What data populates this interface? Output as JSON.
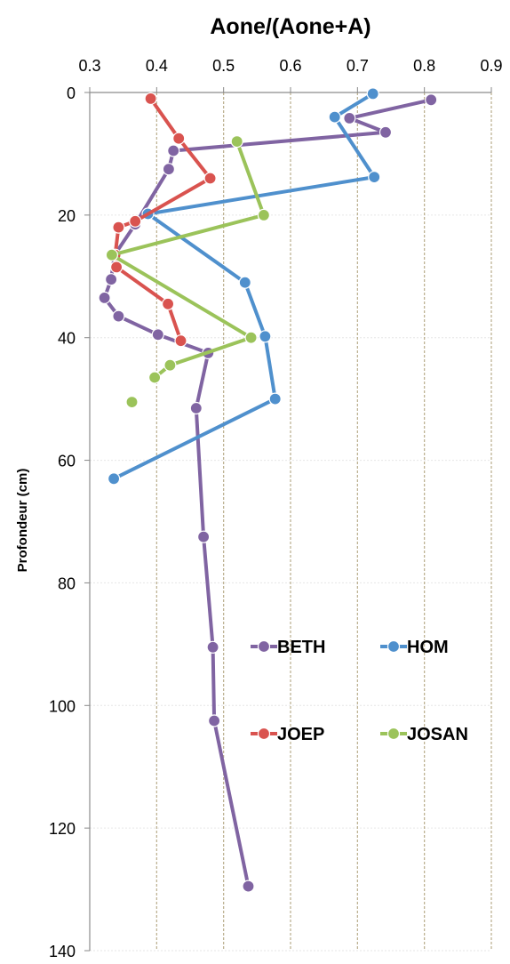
{
  "chart_data": {
    "type": "line",
    "title": "Aone/(Aone+A)",
    "xlabel": "Aone/(Aone+A)",
    "ylabel": "Profondeur (cm)",
    "xlim": [
      0.3,
      0.9
    ],
    "ylim": [
      0,
      140
    ],
    "y_inverted": true,
    "x_axis_position": "top",
    "xticks": [
      "0.3",
      "0.4",
      "0.5",
      "0.6",
      "0.7",
      "0.8",
      "0.9"
    ],
    "yticks": [
      "0",
      "20",
      "40",
      "60",
      "80",
      "100",
      "120",
      "140"
    ],
    "grid": {
      "vertical": true,
      "vertical_color": "#b9ad8c",
      "horizontal": true,
      "horizontal_color": "#e6e6e6"
    },
    "legend": {
      "position": "lower-right",
      "columns": 2
    },
    "series": [
      {
        "name": "BETH",
        "color": "#8064a2",
        "points": [
          {
            "x": 0.81,
            "y": 1.2
          },
          {
            "x": 0.688,
            "y": 4.2
          },
          {
            "x": 0.742,
            "y": 6.5
          },
          {
            "x": 0.425,
            "y": 9.5
          },
          {
            "x": 0.418,
            "y": 12.5
          },
          {
            "x": 0.368,
            "y": 21.5
          },
          {
            "x": 0.337,
            "y": 26.5
          },
          {
            "x": 0.332,
            "y": 30.5
          },
          {
            "x": 0.322,
            "y": 33.5
          },
          {
            "x": 0.343,
            "y": 36.5
          },
          {
            "x": 0.402,
            "y": 39.5
          },
          {
            "x": 0.477,
            "y": 42.5
          },
          {
            "x": 0.459,
            "y": 51.5
          },
          {
            "x": 0.47,
            "y": 72.5
          },
          {
            "x": 0.484,
            "y": 90.5
          },
          {
            "x": 0.486,
            "y": 102.5
          },
          {
            "x": 0.537,
            "y": 129.5
          }
        ]
      },
      {
        "name": "HOM",
        "color": "#4f90cd",
        "points": [
          {
            "x": 0.723,
            "y": 0.2
          },
          {
            "x": 0.666,
            "y": 4.0
          },
          {
            "x": 0.725,
            "y": 13.8
          },
          {
            "x": 0.387,
            "y": 19.8
          },
          {
            "x": 0.532,
            "y": 31.0
          },
          {
            "x": 0.562,
            "y": 39.8
          },
          {
            "x": 0.577,
            "y": 50.0
          },
          {
            "x": 0.336,
            "y": 63.0
          }
        ]
      },
      {
        "name": "JOEP",
        "color": "#d9534f",
        "points": [
          {
            "x": 0.391,
            "y": 1.0
          },
          {
            "x": 0.433,
            "y": 7.5
          },
          {
            "x": 0.48,
            "y": 14.0
          },
          {
            "x": 0.368,
            "y": 21.0
          },
          {
            "x": 0.343,
            "y": 22.0
          },
          {
            "x": 0.338,
            "y": 26.5
          },
          {
            "x": 0.34,
            "y": 28.5
          },
          {
            "x": 0.417,
            "y": 34.5
          },
          {
            "x": 0.436,
            "y": 40.5
          }
        ]
      },
      {
        "name": "JOSAN",
        "color": "#9bc35a",
        "points": [
          {
            "x": 0.52,
            "y": 8.0
          },
          {
            "x": 0.56,
            "y": 20.0
          },
          {
            "x": 0.333,
            "y": 26.5
          },
          {
            "x": 0.541,
            "y": 40.0
          },
          {
            "x": 0.42,
            "y": 44.5
          },
          {
            "x": 0.397,
            "y": 46.5
          },
          {
            "x": 0.363,
            "y": 50.5,
            "gap_before": true
          }
        ]
      }
    ]
  }
}
